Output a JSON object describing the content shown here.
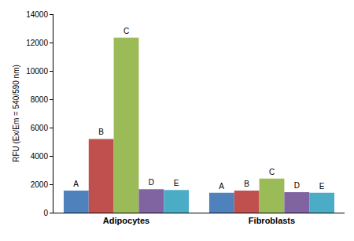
{
  "chart_data": {
    "type": "bar",
    "categories": [
      "Adipocytes",
      "Fibroblasts"
    ],
    "series": [
      {
        "name": "A",
        "color": "#4f81bd",
        "values": [
          1550,
          1400
        ]
      },
      {
        "name": "B",
        "color": "#c0504d",
        "values": [
          5200,
          1550
        ]
      },
      {
        "name": "C",
        "color": "#9bbb59",
        "values": [
          12350,
          2400
        ]
      },
      {
        "name": "D",
        "color": "#8064a2",
        "values": [
          1650,
          1450
        ]
      },
      {
        "name": "E",
        "color": "#4bacc6",
        "values": [
          1600,
          1400
        ]
      }
    ],
    "y_label": "RFU (Ex/Em = 540/590 nm)",
    "ylim": [
      0,
      14000
    ],
    "yticks": [
      0,
      2000,
      4000,
      6000,
      8000,
      10000,
      12000,
      14000
    ],
    "grid": false
  }
}
